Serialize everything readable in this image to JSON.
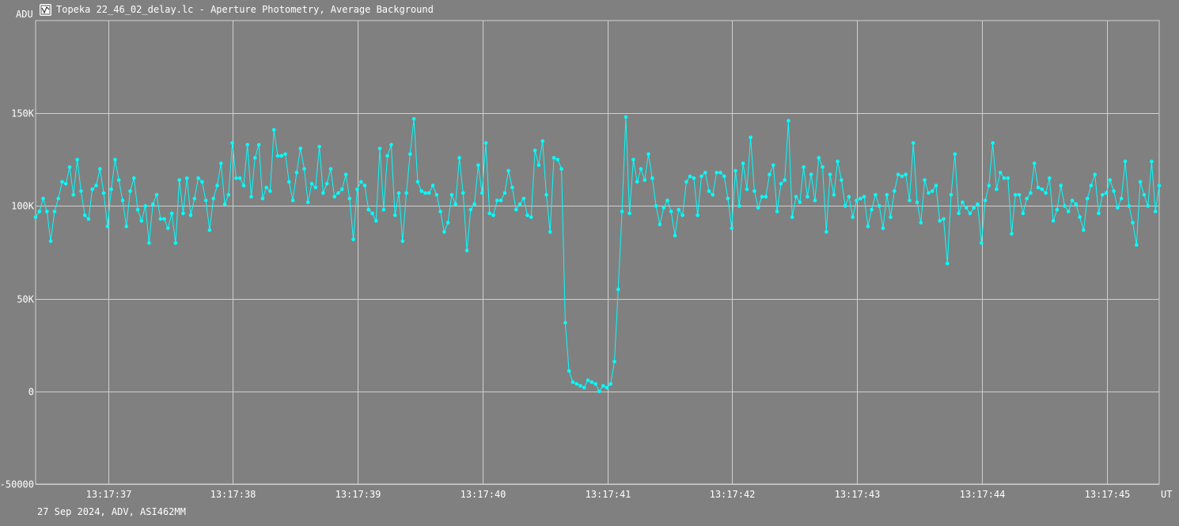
{
  "window": {
    "title": "Topeka 22_46_02_delay.lc - Aperture Photometry, Average Background",
    "icon": "chart-app-icon"
  },
  "footer": {
    "info": "27 Sep 2024, ADV, ASI462MM"
  },
  "colors": {
    "background": "#808080",
    "grid": "#d0d0d0",
    "series": "#00ffff",
    "text": "#ffffff"
  },
  "chart_data": {
    "type": "line",
    "title": "",
    "ylabel": "ADU",
    "xlabel": "UT",
    "ylim": [
      -50000,
      200000
    ],
    "y_ticks": [
      {
        "value": 150000,
        "label": "150K"
      },
      {
        "value": 100000,
        "label": "100K"
      },
      {
        "value": 50000,
        "label": "50K"
      },
      {
        "value": 0,
        "label": "0"
      },
      {
        "value": -50000,
        "label": "-50000"
      }
    ],
    "x_ticks": [
      {
        "t": 36.8,
        "label": "13:17:37"
      },
      {
        "t": 37.8,
        "label": "13:17:38"
      },
      {
        "t": 38.8,
        "label": "13:17:39"
      },
      {
        "t": 39.8,
        "label": "13:17:40"
      },
      {
        "t": 40.8,
        "label": "13:17:41"
      },
      {
        "t": 41.8,
        "label": "13:17:42"
      },
      {
        "t": 42.8,
        "label": "13:17:43"
      },
      {
        "t": 43.8,
        "label": "13:17:44"
      },
      {
        "t": 44.8,
        "label": "13:17:45"
      }
    ],
    "xlim": [
      36.22,
      45.22
    ],
    "grid": true,
    "legend": "none",
    "series": [
      {
        "values": [
          94000,
          97000,
          104000,
          97000,
          81000,
          97000,
          104000,
          113000,
          112000,
          121000,
          106000,
          125000,
          108000,
          95000,
          93000,
          109000,
          111000,
          120000,
          107000,
          89000,
          109000,
          125000,
          114000,
          103000,
          89000,
          108000,
          115000,
          98000,
          92000,
          100000,
          80000,
          101000,
          106000,
          93000,
          93000,
          88000,
          96000,
          80000,
          114000,
          96000,
          115000,
          95000,
          104000,
          115000,
          113000,
          103000,
          87000,
          104000,
          111000,
          123000,
          101000,
          106000,
          134000,
          115000,
          115000,
          111000,
          133000,
          105000,
          126000,
          133000,
          104000,
          110000,
          108000,
          141000,
          127000,
          127000,
          128000,
          113000,
          103000,
          118000,
          131000,
          120000,
          102000,
          112000,
          110000,
          132000,
          107000,
          112000,
          120000,
          105000,
          107000,
          109000,
          117000,
          104000,
          82000,
          109000,
          113000,
          111000,
          98000,
          96000,
          92000,
          131000,
          98000,
          127000,
          133000,
          95000,
          107000,
          81000,
          107000,
          128000,
          147000,
          113000,
          108000,
          107000,
          107000,
          111000,
          106000,
          97000,
          86000,
          91000,
          106000,
          101000,
          126000,
          107000,
          76000,
          98000,
          101000,
          122000,
          107000,
          134000,
          96000,
          95000,
          103000,
          103000,
          107000,
          119000,
          110000,
          98000,
          101000,
          104000,
          95000,
          94000,
          130000,
          122000,
          135000,
          106000,
          86000,
          126000,
          125000,
          120000,
          37000,
          11000,
          5000,
          4000,
          3000,
          2000,
          6000,
          5000,
          4000,
          0,
          3000,
          2000,
          4000,
          16000,
          55000,
          97000,
          148000,
          96000,
          125000,
          113000,
          120000,
          114000,
          128000,
          115000,
          100000,
          90000,
          99000,
          103000,
          97000,
          84000,
          98000,
          95000,
          113000,
          116000,
          115000,
          95000,
          116000,
          118000,
          108000,
          106000,
          118000,
          118000,
          116000,
          104000,
          88000,
          119000,
          100000,
          123000,
          109000,
          137000,
          108000,
          99000,
          105000,
          105000,
          117000,
          122000,
          97000,
          112000,
          114000,
          146000,
          94000,
          105000,
          102000,
          121000,
          105000,
          117000,
          103000,
          126000,
          121000,
          86000,
          117000,
          106000,
          124000,
          114000,
          100000,
          105000,
          94000,
          103000,
          104000,
          105000,
          89000,
          98000,
          106000,
          100000,
          88000,
          106000,
          94000,
          108000,
          117000,
          116000,
          117000,
          103000,
          134000,
          102000,
          91000,
          114000,
          107000,
          108000,
          111000,
          92000,
          93000,
          69000,
          106000,
          128000,
          96000,
          102000,
          99000,
          96000,
          99000,
          101000,
          80000,
          103000,
          111000,
          134000,
          109000,
          118000,
          115000,
          115000,
          85000,
          106000,
          106000,
          96000,
          104000,
          107000,
          123000,
          110000,
          109000,
          107000,
          115000,
          92000,
          98000,
          111000,
          100000,
          97000,
          103000,
          101000,
          94000,
          87000,
          104000,
          111000,
          117000,
          96000,
          106000,
          107000,
          114000,
          108000,
          99000,
          104000,
          124000,
          100000,
          91000,
          79000,
          113000,
          106000,
          100000,
          124000,
          97000,
          111000
        ]
      }
    ]
  }
}
